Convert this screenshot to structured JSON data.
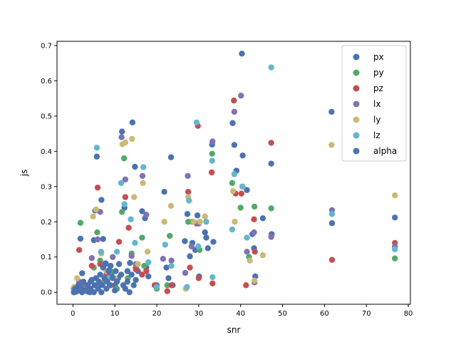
{
  "chart_data": {
    "type": "scatter",
    "xlabel": "snr",
    "ylabel": "js",
    "xlim": [
      -3.8,
      80.5
    ],
    "ylim": [
      -0.034,
      0.712
    ],
    "xticks": [
      0,
      10,
      20,
      30,
      40,
      50,
      60,
      70,
      80
    ],
    "yticks": [
      0.0,
      0.1,
      0.2,
      0.3,
      0.4,
      0.5,
      0.6,
      0.7
    ],
    "xtick_labels": [
      "0",
      "10",
      "20",
      "30",
      "40",
      "50",
      "60",
      "70",
      "80"
    ],
    "ytick_labels": [
      "0.0",
      "0.1",
      "0.2",
      "0.3",
      "0.4",
      "0.5",
      "0.6",
      "0.7"
    ],
    "legend_position": "top-right",
    "series": [
      {
        "name": "px",
        "color": "#4c72b0",
        "points": [
          [
            0.2,
            0.0
          ],
          [
            0.6,
            0.001
          ],
          [
            1.0,
            0.003
          ],
          [
            1.5,
            0.005
          ],
          [
            1.8,
            0.152
          ],
          [
            2.2,
            0.054
          ],
          [
            2.5,
            0.02
          ],
          [
            3.0,
            0.01
          ],
          [
            3.5,
            0.002
          ],
          [
            4.2,
            0.03
          ],
          [
            5.0,
            0.148
          ],
          [
            5.3,
            0.232
          ],
          [
            5.7,
            0.385
          ],
          [
            6.3,
            0.026
          ],
          [
            6.8,
            0.262
          ],
          [
            7.2,
            0.151
          ],
          [
            7.8,
            0.082
          ],
          [
            8.5,
            0.062
          ],
          [
            9.2,
            0.05
          ],
          [
            10.0,
            0.02
          ],
          [
            10.8,
            0.04
          ],
          [
            11.7,
            0.456
          ],
          [
            12.3,
            0.24
          ],
          [
            13.0,
            0.06
          ],
          [
            13.6,
            0.083
          ],
          [
            14.2,
            0.482
          ],
          [
            14.8,
            0.356
          ],
          [
            15.5,
            0.06
          ],
          [
            16.5,
            0.23
          ],
          [
            17.2,
            0.21
          ],
          [
            17.5,
            0.07
          ],
          [
            18.0,
            0.045
          ],
          [
            20.0,
            0.02
          ],
          [
            21.8,
            0.285
          ],
          [
            22.3,
            0.07
          ],
          [
            22.8,
            0.04
          ],
          [
            23.4,
            0.383
          ],
          [
            23.8,
            0.02
          ],
          [
            26.7,
            0.145
          ],
          [
            27.3,
            0.222
          ],
          [
            27.9,
            0.102
          ],
          [
            28.5,
            0.14
          ],
          [
            29.2,
            0.12
          ],
          [
            29.7,
            0.218
          ],
          [
            30.1,
            0.045
          ],
          [
            31.5,
            0.17
          ],
          [
            31.8,
            0.155
          ],
          [
            32.2,
            0.125
          ],
          [
            33.2,
            0.419
          ],
          [
            33.5,
            0.143
          ],
          [
            38.1,
            0.48
          ],
          [
            38.5,
            0.418
          ],
          [
            39.0,
            0.345
          ],
          [
            40.3,
            0.677
          ],
          [
            40.5,
            0.388
          ],
          [
            41.5,
            0.29
          ],
          [
            42.8,
            0.165
          ],
          [
            43.2,
            0.125
          ],
          [
            43.5,
            0.045
          ],
          [
            45.3,
            0.21
          ],
          [
            47.3,
            0.365
          ],
          [
            47.4,
            0.165
          ],
          [
            61.7,
            0.512
          ],
          [
            61.8,
            0.196
          ],
          [
            76.8,
            0.212
          ]
        ]
      },
      {
        "name": "py",
        "color": "#55a868",
        "points": [
          [
            0.5,
            0.005
          ],
          [
            1.8,
            0.197
          ],
          [
            3.0,
            0.02
          ],
          [
            5.0,
            0.07
          ],
          [
            5.8,
            0.17
          ],
          [
            6.5,
            0.09
          ],
          [
            7.5,
            0.03
          ],
          [
            9.0,
            0.06
          ],
          [
            10.5,
            0.01
          ],
          [
            11.7,
            0.228
          ],
          [
            12.2,
            0.38
          ],
          [
            13.1,
            0.04
          ],
          [
            14.0,
            0.11
          ],
          [
            15.0,
            0.07
          ],
          [
            16.5,
            0.155
          ],
          [
            17.0,
            0.075
          ],
          [
            20.0,
            0.01
          ],
          [
            22.5,
            0.02
          ],
          [
            23.1,
            0.16
          ],
          [
            27.5,
            0.2
          ],
          [
            28.5,
            0.2
          ],
          [
            30.2,
            0.12
          ],
          [
            33.2,
            0.393
          ],
          [
            38.0,
            0.31
          ],
          [
            40.0,
            0.24
          ],
          [
            42.0,
            0.1
          ],
          [
            43.3,
            0.243
          ],
          [
            47.3,
            0.238
          ],
          [
            76.8,
            0.096
          ]
        ]
      },
      {
        "name": "pz",
        "color": "#c44e52",
        "points": [
          [
            0.3,
            0.001
          ],
          [
            1.5,
            0.12
          ],
          [
            2.5,
            0.02
          ],
          [
            4.5,
            0.075
          ],
          [
            5.9,
            0.297
          ],
          [
            6.5,
            0.08
          ],
          [
            8.0,
            0.05
          ],
          [
            9.0,
            0.02
          ],
          [
            11.0,
            0.143
          ],
          [
            12.5,
            0.27
          ],
          [
            13.3,
            0.183
          ],
          [
            15.0,
            0.065
          ],
          [
            16.5,
            0.05
          ],
          [
            17.5,
            0.06
          ],
          [
            19.5,
            0.02
          ],
          [
            22.5,
            0.003
          ],
          [
            23.5,
            0.02
          ],
          [
            27.5,
            0.285
          ],
          [
            27.9,
            0.07
          ],
          [
            29.5,
            0.195
          ],
          [
            29.8,
            0.472
          ],
          [
            30.0,
            0.04
          ],
          [
            33.1,
            0.34
          ],
          [
            33.3,
            0.025
          ],
          [
            38.4,
            0.544
          ],
          [
            38.8,
            0.28
          ],
          [
            40.2,
            0.28
          ],
          [
            41.3,
            0.02
          ],
          [
            43.2,
            0.207
          ],
          [
            43.4,
            0.115
          ],
          [
            47.3,
            0.424
          ],
          [
            61.8,
            0.092
          ],
          [
            76.8,
            0.14
          ]
        ]
      },
      {
        "name": "lx",
        "color": "#8172b2",
        "points": [
          [
            0.2,
            0.01
          ],
          [
            1.5,
            0.03
          ],
          [
            2.8,
            0.02
          ],
          [
            4.5,
            0.097
          ],
          [
            5.9,
            0.15
          ],
          [
            6.5,
            0.228
          ],
          [
            7.5,
            0.08
          ],
          [
            9.5,
            0.1
          ],
          [
            11.6,
            0.44
          ],
          [
            12.5,
            0.32
          ],
          [
            14.0,
            0.103
          ],
          [
            15.0,
            0.08
          ],
          [
            16.6,
            0.33
          ],
          [
            17.5,
            0.22
          ],
          [
            21.5,
            0.095
          ],
          [
            23.5,
            0.09
          ],
          [
            26.8,
            0.055
          ],
          [
            27.4,
            0.33
          ],
          [
            28.3,
            0.13
          ],
          [
            30.0,
            0.195
          ],
          [
            33.3,
            0.428
          ],
          [
            38.5,
            0.512
          ],
          [
            40.1,
            0.558
          ],
          [
            41.5,
            0.115
          ],
          [
            43.2,
            0.17
          ],
          [
            43.3,
            0.028
          ],
          [
            47.3,
            0.157
          ],
          [
            61.8,
            0.233
          ],
          [
            76.8,
            0.13
          ]
        ]
      },
      {
        "name": "ly",
        "color": "#ccb974",
        "points": [
          [
            0.3,
            0.015
          ],
          [
            1.0,
            0.04
          ],
          [
            2.0,
            0.01
          ],
          [
            4.8,
            0.215
          ],
          [
            5.5,
            0.235
          ],
          [
            6.8,
            0.11
          ],
          [
            8.0,
            0.06
          ],
          [
            10.0,
            0.04
          ],
          [
            11.8,
            0.42
          ],
          [
            12.5,
            0.425
          ],
          [
            14.1,
            0.435
          ],
          [
            14.6,
            0.27
          ],
          [
            15.5,
            0.08
          ],
          [
            16.7,
            0.31
          ],
          [
            17.8,
            0.115
          ],
          [
            21.8,
            0.2
          ],
          [
            23.4,
            0.245
          ],
          [
            26.9,
            0.01
          ],
          [
            27.5,
            0.27
          ],
          [
            28.8,
            0.2
          ],
          [
            30.3,
            0.2
          ],
          [
            31.5,
            0.215
          ],
          [
            38.2,
            0.287
          ],
          [
            38.6,
            0.2
          ],
          [
            40.5,
            0.3
          ],
          [
            42.2,
            0.09
          ],
          [
            43.3,
            0.033
          ],
          [
            45.3,
            0.105
          ],
          [
            61.7,
            0.418
          ],
          [
            76.8,
            0.275
          ]
        ]
      },
      {
        "name": "lz",
        "color": "#64b5cd",
        "points": [
          [
            0.2,
            0.003
          ],
          [
            1.5,
            0.01
          ],
          [
            3.5,
            0.015
          ],
          [
            5.7,
            0.41
          ],
          [
            6.7,
            0.115
          ],
          [
            8.5,
            0.04
          ],
          [
            10.5,
            0.115
          ],
          [
            11.5,
            0.31
          ],
          [
            12.3,
            0.25
          ],
          [
            13.8,
            0.207
          ],
          [
            14.8,
            0.14
          ],
          [
            16.8,
            0.355
          ],
          [
            18.0,
            0.085
          ],
          [
            20.0,
            0.015
          ],
          [
            22.0,
            0.135
          ],
          [
            23.5,
            0.075
          ],
          [
            27.2,
            0.015
          ],
          [
            27.7,
            0.26
          ],
          [
            29.5,
            0.482
          ],
          [
            29.9,
            0.13
          ],
          [
            31.8,
            0.2
          ],
          [
            33.2,
            0.373
          ],
          [
            33.3,
            0.043
          ],
          [
            38.0,
            0.178
          ],
          [
            38.5,
            0.335
          ],
          [
            40.4,
            0.3
          ],
          [
            41.5,
            0.155
          ],
          [
            47.3,
            0.638
          ],
          [
            61.8,
            0.222
          ],
          [
            76.8,
            0.122
          ]
        ]
      },
      {
        "name": "alpha",
        "color": "#4c72b0",
        "points": [
          [
            0.3,
            0.0
          ],
          [
            0.5,
            0.01
          ],
          [
            1.0,
            0.005
          ],
          [
            1.3,
            0.02
          ],
          [
            2.0,
            0.01
          ],
          [
            2.2,
            0.0
          ],
          [
            2.5,
            0.03
          ],
          [
            3.0,
            0.005
          ],
          [
            3.5,
            0.02
          ],
          [
            4.0,
            0.0
          ],
          [
            4.2,
            0.01
          ],
          [
            4.5,
            0.035
          ],
          [
            5.0,
            0.0
          ],
          [
            5.2,
            0.02
          ],
          [
            5.5,
            0.04
          ],
          [
            6.0,
            0.01
          ],
          [
            6.2,
            0.03
          ],
          [
            6.5,
            0.05
          ],
          [
            6.8,
            0.0
          ],
          [
            7.0,
            0.02
          ],
          [
            7.2,
            0.07
          ],
          [
            7.5,
            0.04
          ],
          [
            7.8,
            0.08
          ],
          [
            8.0,
            0.01
          ],
          [
            8.2,
            0.03
          ],
          [
            8.5,
            0.06
          ],
          [
            8.8,
            0.02
          ],
          [
            9.0,
            0.075
          ],
          [
            9.5,
            0.04
          ],
          [
            10.0,
            0.005
          ],
          [
            10.2,
            0.06
          ],
          [
            10.5,
            0.03
          ],
          [
            11.0,
            0.08
          ],
          [
            11.5,
            0.05
          ],
          [
            12.0,
            0.02
          ],
          [
            12.5,
            0.01
          ],
          [
            13.0,
            0.03
          ],
          [
            13.5,
            0.0
          ],
          [
            14.0,
            0.05
          ],
          [
            14.5,
            0.02
          ],
          [
            15.0,
            0.035
          ]
        ]
      }
    ]
  }
}
